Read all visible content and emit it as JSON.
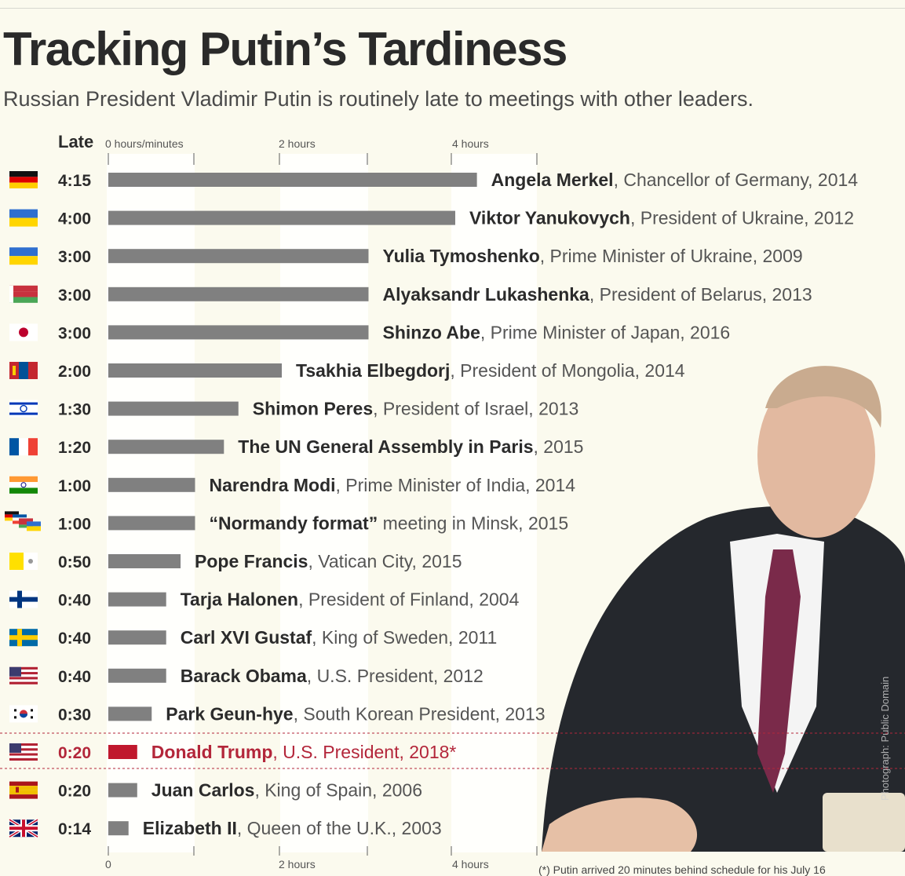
{
  "title": "Tracking Putin’s Tardiness",
  "subtitle": "Russian President Vladimir Putin is routinely late to meetings with other leaders.",
  "late_label": "Late",
  "footnote": "(*) Putin arrived 20 minutes behind schedule for his July 16",
  "photo_credit": "Photograph: Public Domain",
  "colors": {
    "bar": "#808080",
    "highlight": "#c0182d",
    "background": "#fbfaee",
    "text": "#2b2b2b"
  },
  "chart_data": {
    "type": "bar",
    "orientation": "horizontal",
    "x_unit": "hours",
    "xlim": [
      0,
      5
    ],
    "top_ticks": [
      {
        "value": 0,
        "label": "0 hours/minutes"
      },
      {
        "value": 2,
        "label": "2 hours"
      },
      {
        "value": 4,
        "label": "4 hours"
      }
    ],
    "bottom_ticks": [
      {
        "value": 0,
        "label": "0"
      },
      {
        "value": 2,
        "label": "2 hours"
      },
      {
        "value": 4,
        "label": "4 hours"
      }
    ],
    "rows": [
      {
        "time": "4:15",
        "hours": 4.25,
        "name": "Angela Merkel",
        "desc": ", Chancellor of Germany, 2014",
        "flag": "germany-flag",
        "highlight": false
      },
      {
        "time": "4:00",
        "hours": 4.0,
        "name": "Viktor Yanukovych",
        "desc": ", President of Ukraine, 2012",
        "flag": "ukraine-flag",
        "highlight": false
      },
      {
        "time": "3:00",
        "hours": 3.0,
        "name": "Yulia Tymoshenko",
        "desc": ", Prime Minister of Ukraine, 2009",
        "flag": "ukraine-flag",
        "highlight": false
      },
      {
        "time": "3:00",
        "hours": 3.0,
        "name": "Alyaksandr Lukashenka",
        "desc": ", President of Belarus, 2013",
        "flag": "belarus-flag",
        "highlight": false
      },
      {
        "time": "3:00",
        "hours": 3.0,
        "name": "Shinzo Abe",
        "desc": ", Prime Minister of Japan, 2016",
        "flag": "japan-flag",
        "highlight": false
      },
      {
        "time": "2:00",
        "hours": 2.0,
        "name": "Tsakhia Elbegdorj",
        "desc": ", President of Mongolia, 2014",
        "flag": "mongolia-flag",
        "highlight": false
      },
      {
        "time": "1:30",
        "hours": 1.5,
        "name": "Shimon Peres",
        "desc": ", President of Israel, 2013",
        "flag": "israel-flag",
        "highlight": false
      },
      {
        "time": "1:20",
        "hours": 1.333,
        "name": "The UN General Assembly in Paris",
        "desc": ", 2015",
        "flag": "france-flag",
        "highlight": false
      },
      {
        "time": "1:00",
        "hours": 1.0,
        "name": "Narendra Modi",
        "desc": ", Prime Minister of India, 2014",
        "flag": "india-flag",
        "highlight": false
      },
      {
        "time": "1:00",
        "hours": 1.0,
        "name": "“Normandy format”",
        "desc": " meeting in Minsk, 2015",
        "flag": "normandy-flags",
        "highlight": false
      },
      {
        "time": "0:50",
        "hours": 0.833,
        "name": "Pope Francis",
        "desc": ", Vatican City, 2015",
        "flag": "vatican-flag",
        "highlight": false
      },
      {
        "time": "0:40",
        "hours": 0.667,
        "name": "Tarja Halonen",
        "desc": ", President of Finland, 2004",
        "flag": "finland-flag",
        "highlight": false
      },
      {
        "time": "0:40",
        "hours": 0.667,
        "name": "Carl XVI Gustaf",
        "desc": ", King of Sweden, 2011",
        "flag": "sweden-flag",
        "highlight": false
      },
      {
        "time": "0:40",
        "hours": 0.667,
        "name": "Barack Obama",
        "desc": ", U.S. President, 2012",
        "flag": "usa-flag",
        "highlight": false
      },
      {
        "time": "0:30",
        "hours": 0.5,
        "name": "Park Geun-hye",
        "desc": ", South Korean President, 2013",
        "flag": "south-korea-flag",
        "highlight": false
      },
      {
        "time": "0:20",
        "hours": 0.333,
        "name": "Donald Trump",
        "desc": ", U.S. President, 2018*",
        "flag": "usa-flag",
        "highlight": true
      },
      {
        "time": "0:20",
        "hours": 0.333,
        "name": "Juan Carlos",
        "desc": ", King of Spain, 2006",
        "flag": "spain-flag",
        "highlight": false
      },
      {
        "time": "0:14",
        "hours": 0.233,
        "name": "Elizabeth II",
        "desc": ", Queen of the U.K., 2003",
        "flag": "uk-flag",
        "highlight": false
      }
    ]
  }
}
